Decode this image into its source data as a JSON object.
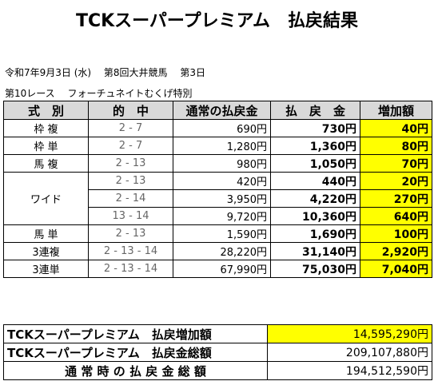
{
  "title": "TCKスーパープレミアム　払戻結果",
  "race_date_line": "令和7年9月3日 (水)　 第8回大井競馬　 第3日",
  "race_name_line": "第10レース　 フォーチュネイトむくげ特別",
  "headers": {
    "type": "式　別",
    "combination": "的　中",
    "normal_payout": "通常の払戻金",
    "payout": "払　戻　金",
    "increase": "増加額"
  },
  "rows": [
    {
      "type": "枠 複",
      "combination": "2 - 7",
      "normal": "690円",
      "payout": "730円",
      "increase": "40円"
    },
    {
      "type": "枠 単",
      "combination": "2 - 7",
      "normal": "1,280円",
      "payout": "1,360円",
      "increase": "80円"
    },
    {
      "type": "馬 複",
      "combination": "2 - 13",
      "normal": "980円",
      "payout": "1,050円",
      "increase": "70円"
    },
    {
      "type": "ワイド",
      "combination": "2 - 13",
      "normal": "420円",
      "payout": "440円",
      "increase": "20円"
    },
    {
      "type": "",
      "combination": "2 - 14",
      "normal": "3,950円",
      "payout": "4,220円",
      "increase": "270円"
    },
    {
      "type": "",
      "combination": "13 - 14",
      "normal": "9,720円",
      "payout": "10,360円",
      "increase": "640円"
    },
    {
      "type": "馬 単",
      "combination": "2 - 13",
      "normal": "1,590円",
      "payout": "1,690円",
      "increase": "100円"
    },
    {
      "type": "3連複",
      "combination": "2 - 13 - 14",
      "normal": "28,220円",
      "payout": "31,140円",
      "increase": "2,920円"
    },
    {
      "type": "3連単",
      "combination": "2 - 13 - 14",
      "normal": "67,990円",
      "payout": "75,030円",
      "increase": "7,040円"
    }
  ],
  "summary": [
    {
      "label": "TCKスーパープレミアム　払戻増加額",
      "value": "14,595,290円"
    },
    {
      "label": "TCKスーパープレミアム　払戻金総額",
      "value": "209,107,880円"
    },
    {
      "label": "通 常 時 の 払 戻 金 総 額",
      "value": "194,512,590円"
    }
  ],
  "colors": {
    "highlight": "#ffff00",
    "header_bg": "#d9d9d9"
  }
}
